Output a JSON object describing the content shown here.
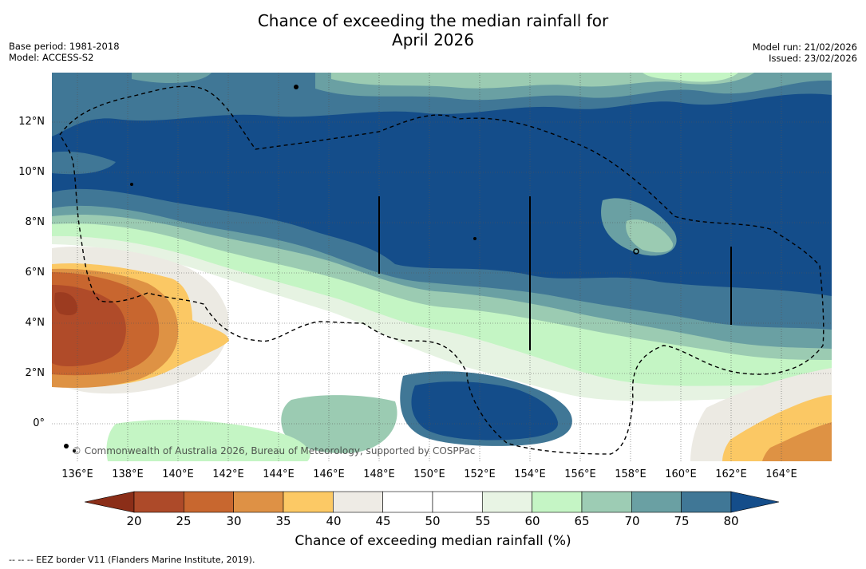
{
  "title_line1": "Chance of exceeding the median rainfall for",
  "title_line2": "April 2026",
  "base_period": "Base period: 1981-2018",
  "model": "Model: ACCESS-S2",
  "model_run": "Model run: 21/02/2026",
  "issued": "Issued: 23/02/2026",
  "copyright": "© Commonwealth of Australia 2026, Bureau of Meteorology, supported by COSPPac",
  "x_ticks": [
    "136°E",
    "138°E",
    "140°E",
    "142°E",
    "144°E",
    "146°E",
    "148°E",
    "150°E",
    "152°E",
    "154°E",
    "156°E",
    "158°E",
    "160°E",
    "162°E",
    "164°E"
  ],
  "y_ticks": [
    "12°N",
    "10°N",
    "8°N",
    "6°N",
    "4°N",
    "2°N",
    "0°"
  ],
  "colorbar": {
    "labels": [
      "20",
      "25",
      "30",
      "35",
      "40",
      "45",
      "50",
      "55",
      "60",
      "65",
      "70",
      "75",
      "80"
    ],
    "colors": [
      "#8b2e18",
      "#ad4a29",
      "#c8672f",
      "#de9145",
      "#fcc965",
      "#eeebe5",
      "#ffffff",
      "#ffffff",
      "#e8f4e4",
      "#c5f5c5",
      "#9dccb4",
      "#6aa0a3",
      "#407796",
      "#144d8a"
    ],
    "title": "Chance of exceeding median rainfall (%)"
  },
  "legend_note": "-- -- -- EEZ border V11 (Flanders Marine Institute, 2019).",
  "map_colors": {
    "c20": "#9c3b20",
    "c25": "#b04b29",
    "c30": "#c8662f",
    "c35": "#de9244",
    "c40": "#fbc864",
    "c45": "#eceae3",
    "c50": "#ffffff",
    "c55": "#ffffff",
    "c60": "#e6f3e2",
    "c65": "#c4f5c4",
    "c70": "#9bcbb2",
    "c75": "#6aa0a3",
    "c80": "#407796",
    "c85": "#144d8a"
  }
}
